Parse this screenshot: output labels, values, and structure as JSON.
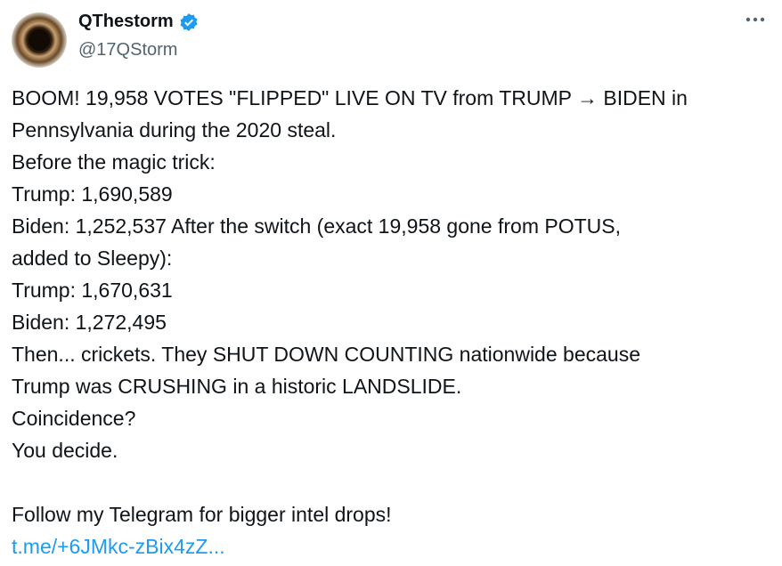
{
  "author": {
    "name": "QThestorm",
    "handle": "@17QStorm"
  },
  "body": {
    "lines": [
      "BOOM!  19,958 VOTES \"FLIPPED\" LIVE ON TV from TRUMP → BIDEN in",
      "Pennsylvania during the 2020 steal.",
      "Before the magic trick:",
      "Trump: 1,690,589",
      "Biden: 1,252,537  After the switch (exact 19,958 gone from POTUS,",
      "added to Sleepy):",
      "Trump: 1,670,631",
      "Biden: 1,272,495",
      "Then... crickets. They SHUT DOWN COUNTING nationwide because",
      "Trump was CRUSHING in a historic LANDSLIDE.",
      "Coincidence?",
      "You decide."
    ],
    "cta": "Follow my Telegram for bigger intel drops!",
    "link": "t.me/+6JMkc-zBix4zZ..."
  }
}
